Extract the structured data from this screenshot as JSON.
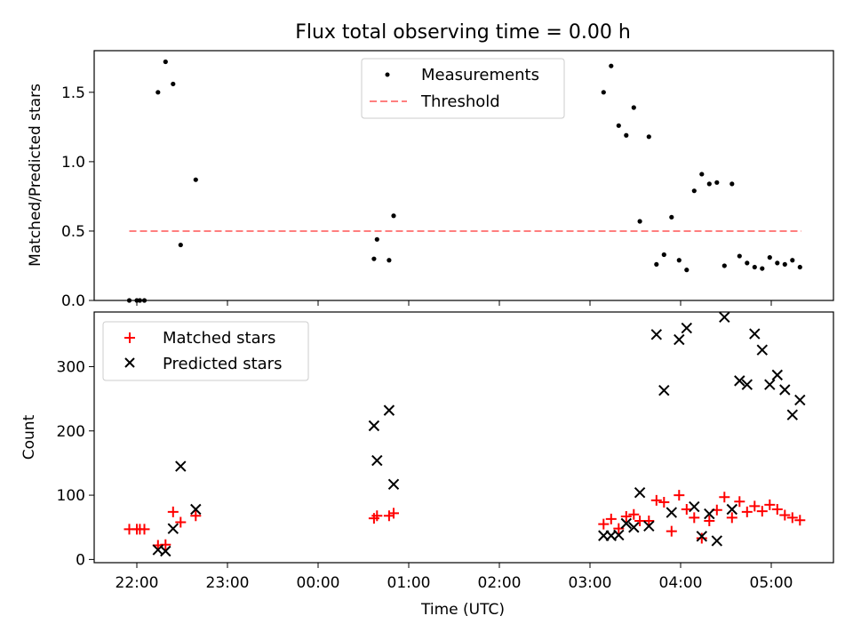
{
  "chart_data": [
    {
      "type": "scatter",
      "title": "Flux total observing time = 0.00 h",
      "xlabel": "",
      "ylabel": "Matched/Predicted stars",
      "xlim": [
        "21:53",
        "05:45"
      ],
      "ylim": [
        0,
        1.8
      ],
      "yticks": [
        "0.0",
        "0.5",
        "1.0",
        "1.5"
      ],
      "grid": false,
      "legend": "upper center",
      "series": [
        {
          "name": "Measurements",
          "marker": "dot",
          "color": "#000000",
          "points": [
            {
              "x": "21:55",
              "y": 0.0
            },
            {
              "x": "22:00",
              "y": 0.0
            },
            {
              "x": "22:02",
              "y": 0.0
            },
            {
              "x": "22:05",
              "y": 0.0
            },
            {
              "x": "22:14",
              "y": 1.5
            },
            {
              "x": "22:19",
              "y": 1.72
            },
            {
              "x": "22:24",
              "y": 1.56
            },
            {
              "x": "22:29",
              "y": 0.4
            },
            {
              "x": "22:39",
              "y": 0.87
            },
            {
              "x": "00:37",
              "y": 0.3
            },
            {
              "x": "00:39",
              "y": 0.44
            },
            {
              "x": "00:47",
              "y": 0.29
            },
            {
              "x": "00:50",
              "y": 0.61
            },
            {
              "x": "03:09",
              "y": 1.5
            },
            {
              "x": "03:14",
              "y": 1.69
            },
            {
              "x": "03:19",
              "y": 1.26
            },
            {
              "x": "03:24",
              "y": 1.19
            },
            {
              "x": "03:29",
              "y": 1.39
            },
            {
              "x": "03:33",
              "y": 0.57
            },
            {
              "x": "03:39",
              "y": 1.18
            },
            {
              "x": "03:44",
              "y": 0.26
            },
            {
              "x": "03:49",
              "y": 0.33
            },
            {
              "x": "03:54",
              "y": 0.6
            },
            {
              "x": "03:59",
              "y": 0.29
            },
            {
              "x": "04:04",
              "y": 0.22
            },
            {
              "x": "04:09",
              "y": 0.79
            },
            {
              "x": "04:14",
              "y": 0.91
            },
            {
              "x": "04:19",
              "y": 0.84
            },
            {
              "x": "04:24",
              "y": 0.85
            },
            {
              "x": "04:29",
              "y": 0.25
            },
            {
              "x": "04:34",
              "y": 0.84
            },
            {
              "x": "04:39",
              "y": 0.32
            },
            {
              "x": "04:44",
              "y": 0.27
            },
            {
              "x": "04:49",
              "y": 0.24
            },
            {
              "x": "04:54",
              "y": 0.23
            },
            {
              "x": "04:59",
              "y": 0.31
            },
            {
              "x": "05:04",
              "y": 0.27
            },
            {
              "x": "05:09",
              "y": 0.26
            },
            {
              "x": "05:14",
              "y": 0.29
            },
            {
              "x": "05:19",
              "y": 0.24
            }
          ]
        },
        {
          "name": "Threshold",
          "style": "dashed",
          "color": "#ff7f7f",
          "points": [
            {
              "x": "21:55",
              "y": 0.5
            },
            {
              "x": "05:20",
              "y": 0.5
            }
          ]
        }
      ]
    },
    {
      "type": "scatter",
      "title": "",
      "xlabel": "Time (UTC)",
      "ylabel": "Count",
      "xlim": [
        "21:53",
        "05:45"
      ],
      "ylim": [
        -5,
        385
      ],
      "xticks": [
        "22:00",
        "23:00",
        "00:00",
        "01:00",
        "02:00",
        "03:00",
        "04:00",
        "05:00"
      ],
      "yticks": [
        "0",
        "100",
        "200",
        "300"
      ],
      "grid": false,
      "legend": "upper left",
      "series": [
        {
          "name": "Matched stars",
          "marker": "plus",
          "color": "#ff0000",
          "points": [
            {
              "x": "21:55",
              "y": 47
            },
            {
              "x": "22:00",
              "y": 47
            },
            {
              "x": "22:02",
              "y": 47
            },
            {
              "x": "22:05",
              "y": 47
            },
            {
              "x": "22:14",
              "y": 22
            },
            {
              "x": "22:19",
              "y": 23
            },
            {
              "x": "22:24",
              "y": 74
            },
            {
              "x": "22:29",
              "y": 58
            },
            {
              "x": "22:39",
              "y": 68
            },
            {
              "x": "00:37",
              "y": 64
            },
            {
              "x": "00:39",
              "y": 68
            },
            {
              "x": "00:47",
              "y": 68
            },
            {
              "x": "00:50",
              "y": 72
            },
            {
              "x": "03:09",
              "y": 55
            },
            {
              "x": "03:14",
              "y": 63
            },
            {
              "x": "03:19",
              "y": 48
            },
            {
              "x": "03:24",
              "y": 67
            },
            {
              "x": "03:29",
              "y": 70
            },
            {
              "x": "03:33",
              "y": 60
            },
            {
              "x": "03:39",
              "y": 60
            },
            {
              "x": "03:44",
              "y": 92
            },
            {
              "x": "03:49",
              "y": 89
            },
            {
              "x": "03:54",
              "y": 44
            },
            {
              "x": "03:59",
              "y": 100
            },
            {
              "x": "04:04",
              "y": 78
            },
            {
              "x": "04:09",
              "y": 65
            },
            {
              "x": "04:14",
              "y": 33
            },
            {
              "x": "04:19",
              "y": 60
            },
            {
              "x": "04:24",
              "y": 77
            },
            {
              "x": "04:29",
              "y": 97
            },
            {
              "x": "04:34",
              "y": 65
            },
            {
              "x": "04:39",
              "y": 90
            },
            {
              "x": "04:44",
              "y": 74
            },
            {
              "x": "04:49",
              "y": 83
            },
            {
              "x": "04:54",
              "y": 75
            },
            {
              "x": "04:59",
              "y": 85
            },
            {
              "x": "05:04",
              "y": 78
            },
            {
              "x": "05:09",
              "y": 69
            },
            {
              "x": "05:14",
              "y": 65
            },
            {
              "x": "05:19",
              "y": 61
            }
          ]
        },
        {
          "name": "Predicted stars",
          "marker": "x",
          "color": "#000000",
          "points": [
            {
              "x": "22:14",
              "y": 15
            },
            {
              "x": "22:19",
              "y": 13
            },
            {
              "x": "22:24",
              "y": 48
            },
            {
              "x": "22:29",
              "y": 145
            },
            {
              "x": "22:39",
              "y": 78
            },
            {
              "x": "00:37",
              "y": 208
            },
            {
              "x": "00:39",
              "y": 154
            },
            {
              "x": "00:47",
              "y": 232
            },
            {
              "x": "00:50",
              "y": 117
            },
            {
              "x": "03:09",
              "y": 37
            },
            {
              "x": "03:14",
              "y": 37
            },
            {
              "x": "03:19",
              "y": 38
            },
            {
              "x": "03:24",
              "y": 56
            },
            {
              "x": "03:29",
              "y": 50
            },
            {
              "x": "03:33",
              "y": 104
            },
            {
              "x": "03:39",
              "y": 52
            },
            {
              "x": "03:44",
              "y": 350
            },
            {
              "x": "03:49",
              "y": 263
            },
            {
              "x": "03:54",
              "y": 73
            },
            {
              "x": "03:59",
              "y": 342
            },
            {
              "x": "04:04",
              "y": 360
            },
            {
              "x": "04:09",
              "y": 82
            },
            {
              "x": "04:14",
              "y": 36
            },
            {
              "x": "04:19",
              "y": 71
            },
            {
              "x": "04:24",
              "y": 29
            },
            {
              "x": "04:29",
              "y": 377
            },
            {
              "x": "04:34",
              "y": 78
            },
            {
              "x": "04:39",
              "y": 278
            },
            {
              "x": "04:44",
              "y": 272
            },
            {
              "x": "04:49",
              "y": 351
            },
            {
              "x": "04:54",
              "y": 326
            },
            {
              "x": "04:59",
              "y": 272
            },
            {
              "x": "05:04",
              "y": 287
            },
            {
              "x": "05:09",
              "y": 264
            },
            {
              "x": "05:14",
              "y": 225
            },
            {
              "x": "05:19",
              "y": 248
            }
          ]
        }
      ]
    }
  ]
}
